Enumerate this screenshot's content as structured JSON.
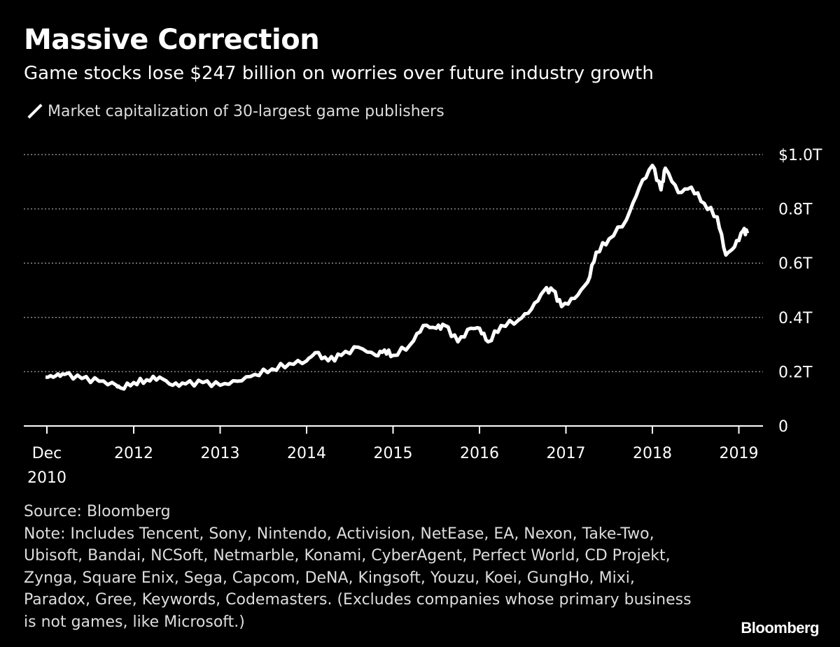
{
  "title": "Massive Correction",
  "subtitle": "Game stocks lose $247 billion on worries over future industry growth",
  "source": "Source: Bloomberg",
  "note": "Note: Includes Tencent, Sony, Nintendo, Activision, NetEase, EA, Nexon, Take-Two, Ubisoft, Bandai, NCSoft, Netmarble, Konami, CyberAgent, Perfect World, CD Projekt, Zynga, Square Enix, Sega, Capcom, DeNA, Kingsoft, Youzu, Koei, GungHo, Mixi, Paradox, Gree, Keywords, Codemasters. (Excludes companies whose primary business is not games, like Microsoft.)",
  "logo": "Bloomberg",
  "chart_data": {
    "type": "line",
    "title": "Massive Correction",
    "legend": "top-left",
    "grid": true,
    "line_color": "#ffffff",
    "background": "#000000",
    "ylim": [
      0,
      1.0
    ],
    "y_ticks": [
      {
        "v": 0,
        "label": "0"
      },
      {
        "v": 0.2,
        "label": "0.2T"
      },
      {
        "v": 0.4,
        "label": "0.4T"
      },
      {
        "v": 0.6,
        "label": "0.6T"
      },
      {
        "v": 0.8,
        "label": "0.8T"
      },
      {
        "v": 1.0,
        "label": "$1.0T"
      }
    ],
    "x_ticks": [
      {
        "v": 2010.95,
        "label": "Dec",
        "label2": "2010"
      },
      {
        "v": 2012,
        "label": "2012"
      },
      {
        "v": 2013,
        "label": "2013"
      },
      {
        "v": 2014,
        "label": "2014"
      },
      {
        "v": 2015,
        "label": "2015"
      },
      {
        "v": 2016,
        "label": "2016"
      },
      {
        "v": 2017,
        "label": "2017"
      },
      {
        "v": 2018,
        "label": "2018"
      },
      {
        "v": 2019,
        "label": "2019"
      }
    ],
    "series": [
      {
        "name": "Market capitalization of 30-largest game publishers",
        "x": [
          2010.95,
          2011.1,
          2011.2,
          2011.4,
          2011.6,
          2011.8,
          2011.85,
          2012.0,
          2012.15,
          2012.3,
          2012.45,
          2012.6,
          2012.8,
          2013.0,
          2013.2,
          2013.4,
          2013.6,
          2013.8,
          2014.0,
          2014.1,
          2014.25,
          2014.4,
          2014.6,
          2014.8,
          2014.9,
          2015.0,
          2015.2,
          2015.35,
          2015.5,
          2015.6,
          2015.75,
          2015.9,
          2016.0,
          2016.1,
          2016.25,
          2016.45,
          2016.6,
          2016.75,
          2016.85,
          2016.95,
          2017.1,
          2017.25,
          2017.35,
          2017.5,
          2017.7,
          2017.85,
          2018.0,
          2018.1,
          2018.15,
          2018.3,
          2018.45,
          2018.6,
          2018.75,
          2018.85,
          2018.95,
          2019.05,
          2019.1
        ],
        "y": [
          0.18,
          0.185,
          0.19,
          0.175,
          0.165,
          0.15,
          0.14,
          0.16,
          0.17,
          0.18,
          0.15,
          0.155,
          0.16,
          0.15,
          0.165,
          0.19,
          0.21,
          0.23,
          0.24,
          0.27,
          0.24,
          0.26,
          0.29,
          0.26,
          0.28,
          0.26,
          0.3,
          0.37,
          0.36,
          0.37,
          0.31,
          0.36,
          0.36,
          0.31,
          0.37,
          0.39,
          0.43,
          0.5,
          0.5,
          0.44,
          0.47,
          0.53,
          0.64,
          0.69,
          0.76,
          0.88,
          0.96,
          0.87,
          0.95,
          0.86,
          0.88,
          0.82,
          0.77,
          0.63,
          0.66,
          0.72,
          0.71
        ]
      }
    ]
  }
}
